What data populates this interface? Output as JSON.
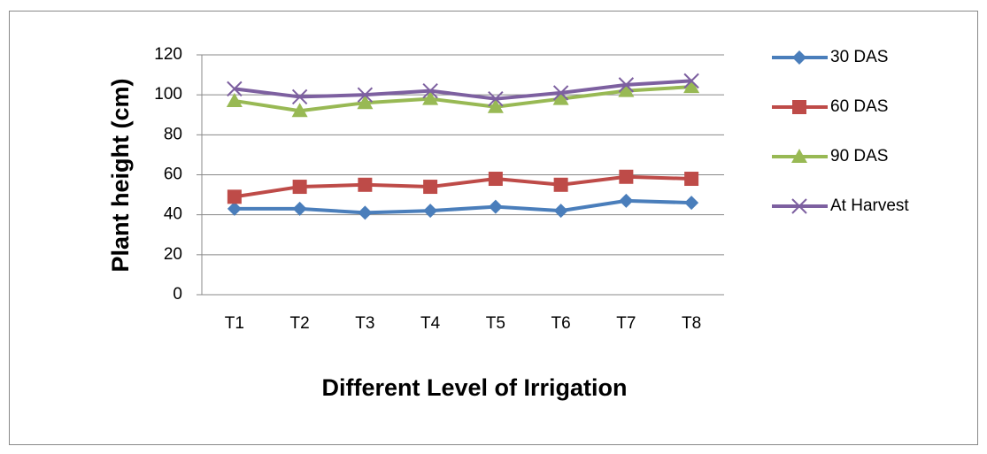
{
  "chart_data": {
    "type": "line",
    "y_label": "Plant height (cm)",
    "x_label": "Different Level of Irrigation",
    "categories": [
      "T1",
      "T2",
      "T3",
      "T4",
      "T5",
      "T6",
      "T7",
      "T8"
    ],
    "series": [
      {
        "name": "30 DAS",
        "color": "#4a7ebb",
        "marker": "diamond",
        "values": [
          43,
          43,
          41,
          42,
          44,
          42,
          47,
          46
        ]
      },
      {
        "name": "60 DAS",
        "color": "#be4b48",
        "marker": "square",
        "values": [
          49,
          54,
          55,
          54,
          58,
          55,
          59,
          58
        ]
      },
      {
        "name": "90 DAS",
        "color": "#98b954",
        "marker": "triangle",
        "values": [
          97,
          92,
          96,
          98,
          94,
          98,
          102,
          104
        ]
      },
      {
        "name": "At Harvest",
        "color": "#7d60a0",
        "marker": "x",
        "values": [
          103,
          99,
          100,
          102,
          98,
          101,
          105,
          107
        ]
      }
    ],
    "ylim": [
      0,
      120
    ],
    "yticks": [
      0,
      20,
      40,
      60,
      80,
      100,
      120
    ],
    "grid": true,
    "legend": "right"
  }
}
